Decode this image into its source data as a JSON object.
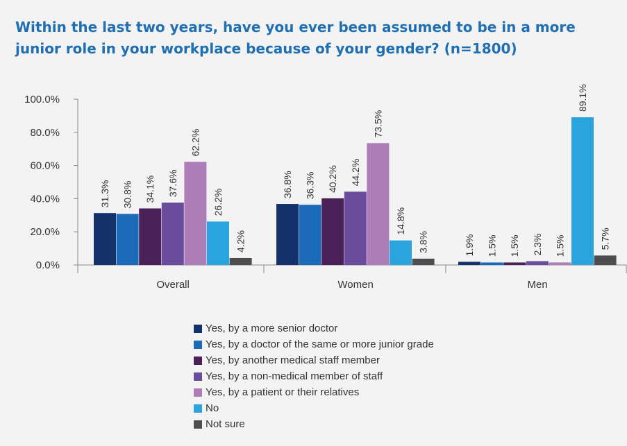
{
  "chart_data": {
    "type": "bar",
    "title": "Within the last two years, have you ever been assumed to be in a more junior role in your workplace because of your gender? (n=1800)",
    "categories": [
      "Overall",
      "Women",
      "Men"
    ],
    "ylim": [
      0,
      100
    ],
    "yticks": [
      "0.0%",
      "20.0%",
      "40.0%",
      "60.0%",
      "80.0%",
      "100.0%"
    ],
    "yticks_values": [
      0,
      20,
      40,
      60,
      80,
      100
    ],
    "grid": false,
    "legend_position": "bottom",
    "series": [
      {
        "name": "Yes, by a more senior doctor",
        "color": "#15316b",
        "values": [
          31.3,
          36.8,
          1.9
        ],
        "labels": [
          "31.3%",
          "36.8%",
          "1.9%"
        ]
      },
      {
        "name": "Yes, by a doctor of the same or more junior grade",
        "color": "#1b6bb8",
        "values": [
          30.8,
          36.3,
          1.5
        ],
        "labels": [
          "30.8%",
          "36.3%",
          "1.5%"
        ]
      },
      {
        "name": "Yes, by another medical staff member",
        "color": "#4a2059",
        "values": [
          34.1,
          40.2,
          1.5
        ],
        "labels": [
          "34.1%",
          "40.2%",
          "1.5%"
        ]
      },
      {
        "name": "Yes, by a non-medical member of staff",
        "color": "#6a4c9c",
        "values": [
          37.6,
          44.2,
          2.3
        ],
        "labels": [
          "37.6%",
          "44.2%",
          "2.3%"
        ]
      },
      {
        "name": "Yes, by a patient or their relatives",
        "color": "#ad7db8",
        "values": [
          62.2,
          73.5,
          1.5
        ],
        "labels": [
          "62.2%",
          "73.5%",
          "1.5%"
        ]
      },
      {
        "name": "No",
        "color": "#2aa4dd",
        "values": [
          26.2,
          14.8,
          89.1
        ],
        "labels": [
          "26.2%",
          "14.8%",
          "89.1%"
        ]
      },
      {
        "name": "Not sure",
        "color": "#4d4d4f",
        "values": [
          4.2,
          3.8,
          5.7
        ],
        "labels": [
          "4.2%",
          "3.8%",
          "5.7%"
        ]
      }
    ]
  }
}
